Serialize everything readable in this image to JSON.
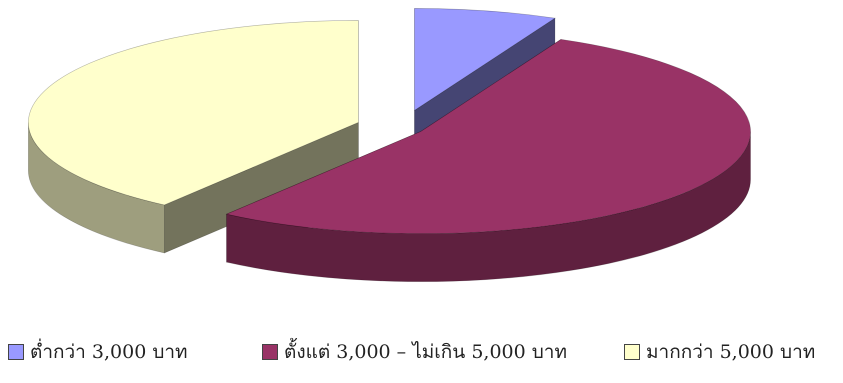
{
  "chart_data": {
    "type": "pie",
    "style": "3d-exploded",
    "categories": [
      "ต่ำกว่า  3,000 บาท",
      "ตั้งแต่ 3,000 – ไม่เกิน 5,000 บาท",
      "มากกว่า 5,000 บาท"
    ],
    "values": [
      7,
      53,
      40
    ],
    "colors": [
      "#9999ff",
      "#993366",
      "#ffffcc"
    ],
    "legend_position": "bottom"
  }
}
